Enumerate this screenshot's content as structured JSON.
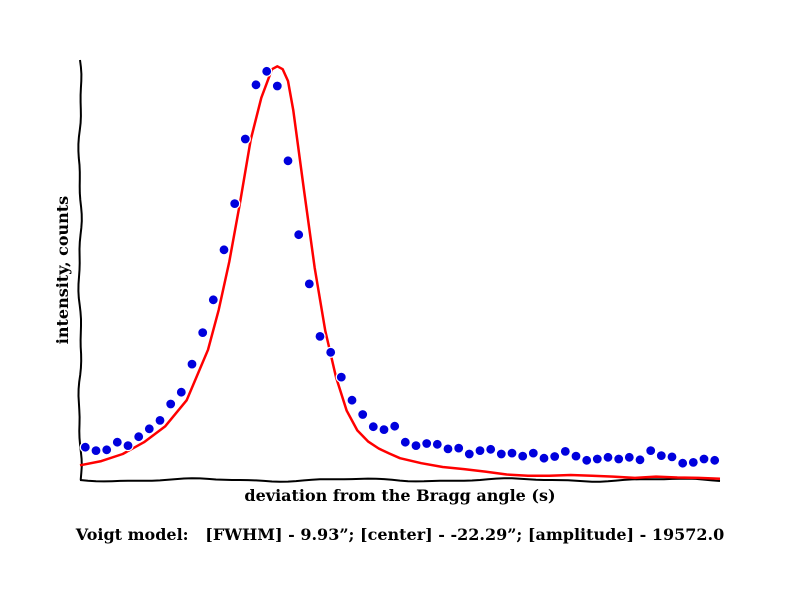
{
  "chart_data": {
    "type": "scatter",
    "title": "",
    "xlabel": "deviation from the Bragg angle (s)",
    "ylabel": "intensity, counts",
    "caption": "Voigt model:   [FWHM] - 9.93”; [center] - -22.29”; [amplitude] - 19572.0",
    "xlim": [
      0,
      60
    ],
    "ylim": [
      0,
      1
    ],
    "grid": false,
    "show_ticks": false,
    "colors": {
      "points": "#0000dd",
      "point_edge": "#ffffff",
      "fit": "#ff0000",
      "axis": "#000000"
    },
    "series": [
      {
        "kind": "points",
        "x": [
          0.5,
          1.5,
          2.5,
          3.5,
          4.5,
          5.5,
          6.5,
          7.5,
          8.5,
          9.5,
          10.5,
          11.5,
          12.5,
          13.5,
          14.5,
          15.5,
          16.5,
          17.5,
          18.5,
          19.5,
          20.5,
          21.5,
          22.5,
          23.5,
          24.5,
          25.5,
          26.5,
          27.5,
          28.5,
          29.5,
          30.5,
          31.5,
          32.5,
          33.5,
          34.5,
          35.5,
          36.5,
          37.5,
          38.5,
          39.5,
          40.5,
          41.5,
          42.5,
          43.5,
          44.5,
          45.5,
          46.5,
          47.5,
          48.5,
          49.5,
          50.5,
          51.5,
          52.5,
          53.5,
          54.5,
          55.5,
          56.5,
          57.5,
          58.5,
          59.5
        ],
        "values": [
          0.078,
          0.07,
          0.072,
          0.09,
          0.082,
          0.103,
          0.122,
          0.142,
          0.181,
          0.209,
          0.276,
          0.351,
          0.429,
          0.548,
          0.658,
          0.812,
          0.941,
          0.973,
          0.938,
          0.76,
          0.584,
          0.467,
          0.342,
          0.304,
          0.245,
          0.19,
          0.156,
          0.127,
          0.12,
          0.128,
          0.09,
          0.082,
          0.087,
          0.085,
          0.074,
          0.076,
          0.062,
          0.07,
          0.073,
          0.062,
          0.064,
          0.057,
          0.064,
          0.052,
          0.056,
          0.068,
          0.057,
          0.047,
          0.05,
          0.054,
          0.05,
          0.054,
          0.048,
          0.07,
          0.058,
          0.055,
          0.04,
          0.042,
          0.05,
          0.047
        ]
      },
      {
        "kind": "line",
        "x": [
          0,
          2,
          4,
          6,
          8,
          10,
          12,
          13,
          14,
          15,
          16,
          17,
          18,
          18.5,
          19,
          19.5,
          20,
          21,
          22,
          23,
          24,
          25,
          26,
          27,
          28,
          29,
          30,
          32,
          34,
          36,
          38,
          40,
          42,
          44,
          46,
          48,
          50,
          52,
          54,
          56,
          58,
          60
        ],
        "values": [
          0.035,
          0.045,
          0.062,
          0.09,
          0.128,
          0.19,
          0.31,
          0.405,
          0.52,
          0.66,
          0.81,
          0.91,
          0.978,
          0.985,
          0.978,
          0.95,
          0.88,
          0.69,
          0.505,
          0.355,
          0.245,
          0.165,
          0.118,
          0.092,
          0.075,
          0.063,
          0.052,
          0.04,
          0.031,
          0.026,
          0.02,
          0.013,
          0.01,
          0.01,
          0.012,
          0.01,
          0.008,
          0.005,
          0.008,
          0.006,
          0.005,
          0.003
        ]
      }
    ]
  }
}
